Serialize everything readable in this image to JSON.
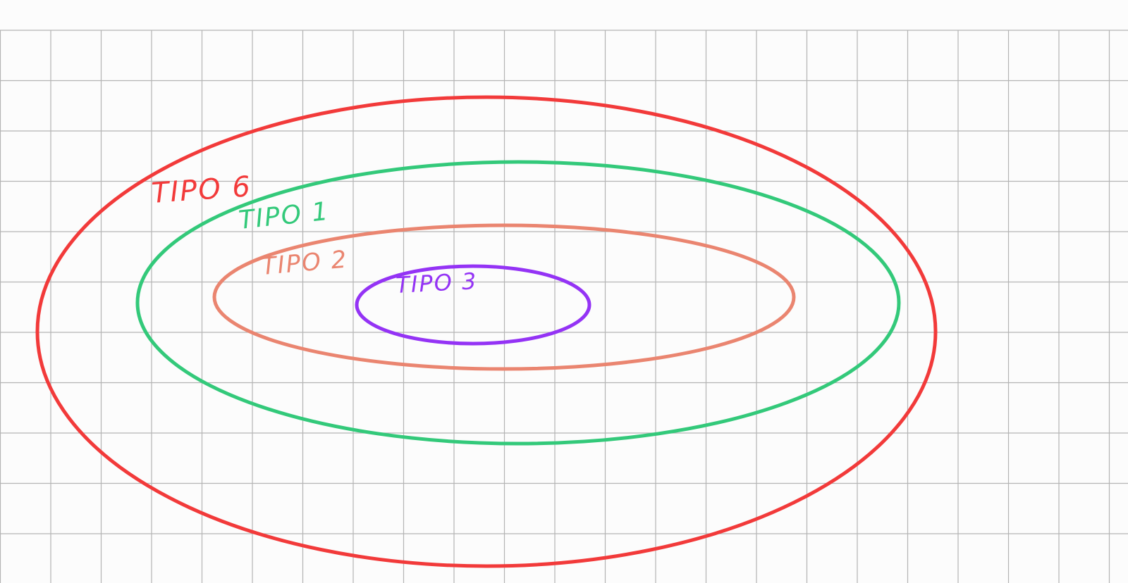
{
  "sets": [
    {
      "id": "tipo6",
      "label": "TIPO 6",
      "color": "#f23a3a"
    },
    {
      "id": "tipo1",
      "label": "TIPO 1",
      "color": "#33c97a"
    },
    {
      "id": "tipo2",
      "label": "TIPO 2",
      "color": "#ea8570"
    },
    {
      "id": "tipo3",
      "label": "TIPO 3",
      "color": "#9433f5"
    }
  ],
  "grid": {
    "color": "#b4b4b4",
    "background": "#fcfcfc"
  }
}
